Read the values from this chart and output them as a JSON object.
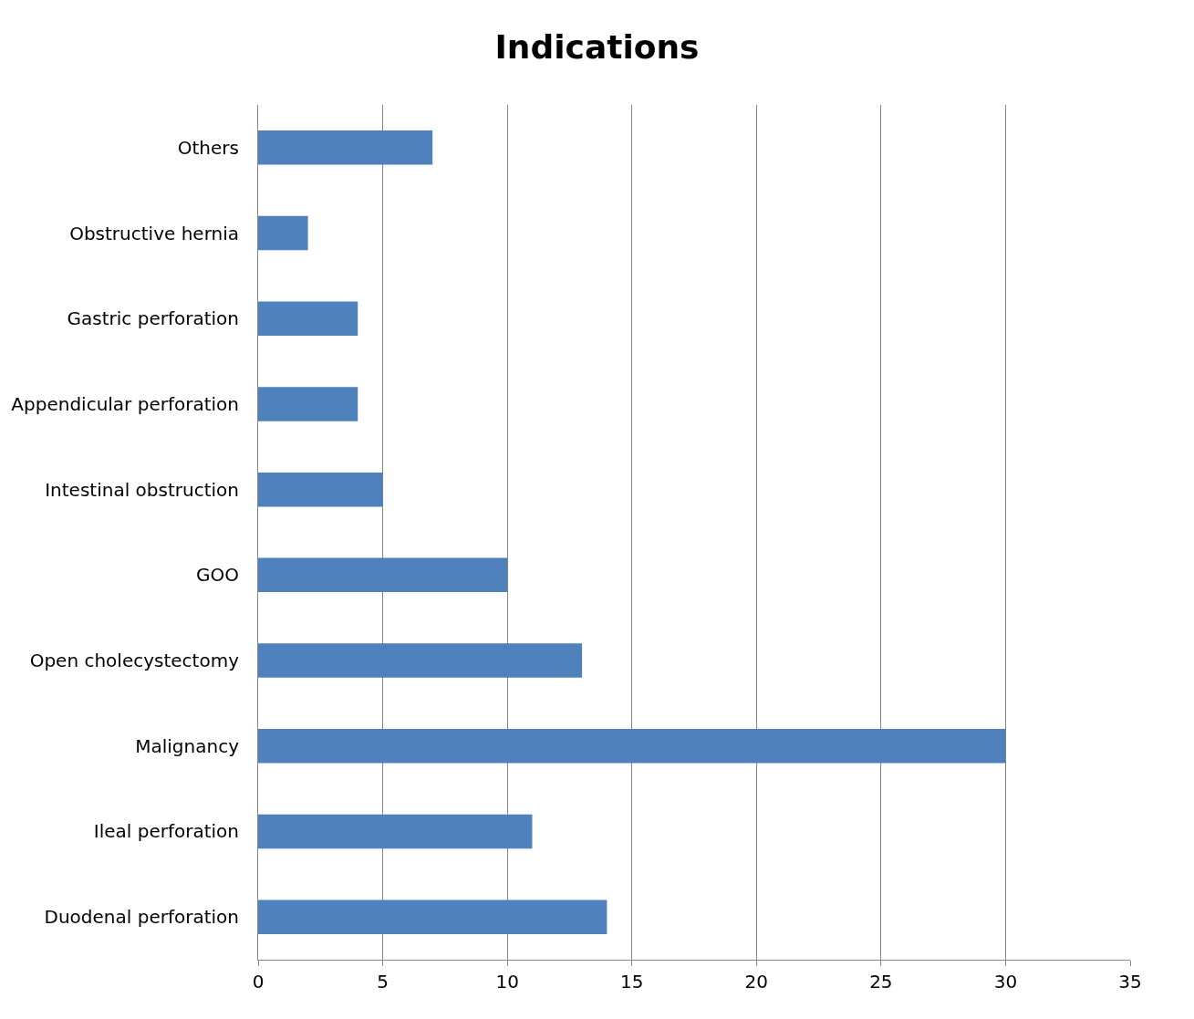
{
  "chart_data": {
    "type": "bar",
    "orientation": "horizontal",
    "title": "Indications",
    "categories": [
      "Others",
      "Obstructive hernia",
      "Gastric perforation",
      "Appendicular perforation",
      "Intestinal obstruction",
      "GOO",
      "Open cholecystectomy",
      "Malignancy",
      "Ileal perforation",
      "Duodenal perforation"
    ],
    "values": [
      7,
      2,
      4,
      4,
      5,
      10,
      13,
      30,
      11,
      14
    ],
    "color": "#4f81bd",
    "xlim": [
      0,
      35
    ],
    "xticks": [
      0,
      5,
      10,
      15,
      20,
      25,
      30,
      35
    ],
    "grid": "x"
  }
}
